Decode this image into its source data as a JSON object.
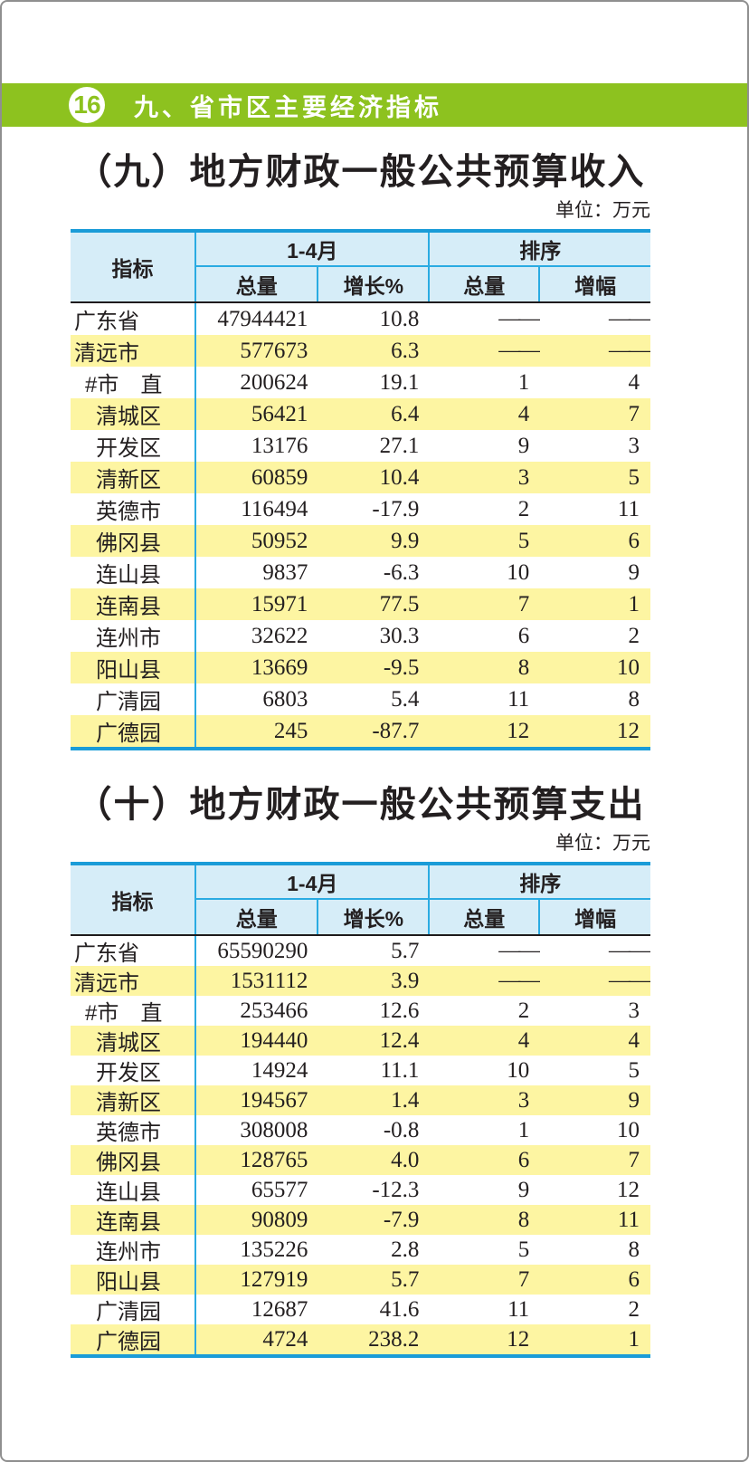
{
  "page_badge": {
    "number": "16",
    "section_title": "九、省市区主要经济指标"
  },
  "tables": [
    {
      "title": "（九）地方财政一般公共预算收入",
      "unit": "单位：万元",
      "header": {
        "indicator": "指标",
        "period_group": "1-4月",
        "rank_group": "排序",
        "sub_total_1": "总量",
        "sub_growth": "增长%",
        "sub_total_2": "总量",
        "sub_increase": "增幅"
      },
      "rows": [
        {
          "label": "广东省",
          "indent": 0,
          "total": "47944421",
          "growth": "10.8",
          "rank_total": "——",
          "rank_growth": "——"
        },
        {
          "label": "清远市",
          "indent": 0,
          "total": "577673",
          "growth": "6.3",
          "rank_total": "——",
          "rank_growth": "——"
        },
        {
          "label": "#市　直",
          "indent": 1,
          "total": "200624",
          "growth": "19.1",
          "rank_total": "1",
          "rank_growth": "4"
        },
        {
          "label": "清城区",
          "indent": 2,
          "total": "56421",
          "growth": "6.4",
          "rank_total": "4",
          "rank_growth": "7"
        },
        {
          "label": "开发区",
          "indent": 2,
          "total": "13176",
          "growth": "27.1",
          "rank_total": "9",
          "rank_growth": "3"
        },
        {
          "label": "清新区",
          "indent": 2,
          "total": "60859",
          "growth": "10.4",
          "rank_total": "3",
          "rank_growth": "5"
        },
        {
          "label": "英德市",
          "indent": 2,
          "total": "116494",
          "growth": "-17.9",
          "rank_total": "2",
          "rank_growth": "11"
        },
        {
          "label": "佛冈县",
          "indent": 2,
          "total": "50952",
          "growth": "9.9",
          "rank_total": "5",
          "rank_growth": "6"
        },
        {
          "label": "连山县",
          "indent": 2,
          "total": "9837",
          "growth": "-6.3",
          "rank_total": "10",
          "rank_growth": "9"
        },
        {
          "label": "连南县",
          "indent": 2,
          "total": "15971",
          "growth": "77.5",
          "rank_total": "7",
          "rank_growth": "1"
        },
        {
          "label": "连州市",
          "indent": 2,
          "total": "32622",
          "growth": "30.3",
          "rank_total": "6",
          "rank_growth": "2"
        },
        {
          "label": "阳山县",
          "indent": 2,
          "total": "13669",
          "growth": "-9.5",
          "rank_total": "8",
          "rank_growth": "10"
        },
        {
          "label": "广清园",
          "indent": 2,
          "total": "6803",
          "growth": "5.4",
          "rank_total": "11",
          "rank_growth": "8"
        },
        {
          "label": "广德园",
          "indent": 2,
          "total": "245",
          "growth": "-87.7",
          "rank_total": "12",
          "rank_growth": "12"
        }
      ]
    },
    {
      "title": "（十）地方财政一般公共预算支出",
      "unit": "单位：万元",
      "header": {
        "indicator": "指标",
        "period_group": "1-4月",
        "rank_group": "排序",
        "sub_total_1": "总量",
        "sub_growth": "增长%",
        "sub_total_2": "总量",
        "sub_increase": "增幅"
      },
      "rows": [
        {
          "label": "广东省",
          "indent": 0,
          "total": "65590290",
          "growth": "5.7",
          "rank_total": "——",
          "rank_growth": "——"
        },
        {
          "label": "清远市",
          "indent": 0,
          "total": "1531112",
          "growth": "3.9",
          "rank_total": "——",
          "rank_growth": "——"
        },
        {
          "label": "#市　直",
          "indent": 1,
          "total": "253466",
          "growth": "12.6",
          "rank_total": "2",
          "rank_growth": "3"
        },
        {
          "label": "清城区",
          "indent": 2,
          "total": "194440",
          "growth": "12.4",
          "rank_total": "4",
          "rank_growth": "4"
        },
        {
          "label": "开发区",
          "indent": 2,
          "total": "14924",
          "growth": "11.1",
          "rank_total": "10",
          "rank_growth": "5"
        },
        {
          "label": "清新区",
          "indent": 2,
          "total": "194567",
          "growth": "1.4",
          "rank_total": "3",
          "rank_growth": "9"
        },
        {
          "label": "英德市",
          "indent": 2,
          "total": "308008",
          "growth": "-0.8",
          "rank_total": "1",
          "rank_growth": "10"
        },
        {
          "label": "佛冈县",
          "indent": 2,
          "total": "128765",
          "growth": "4.0",
          "rank_total": "6",
          "rank_growth": "7"
        },
        {
          "label": "连山县",
          "indent": 2,
          "total": "65577",
          "growth": "-12.3",
          "rank_total": "9",
          "rank_growth": "12"
        },
        {
          "label": "连南县",
          "indent": 2,
          "total": "90809",
          "growth": "-7.9",
          "rank_total": "8",
          "rank_growth": "11"
        },
        {
          "label": "连州市",
          "indent": 2,
          "total": "135226",
          "growth": "2.8",
          "rank_total": "5",
          "rank_growth": "8"
        },
        {
          "label": "阳山县",
          "indent": 2,
          "total": "127919",
          "growth": "5.7",
          "rank_total": "7",
          "rank_growth": "6"
        },
        {
          "label": "广清园",
          "indent": 2,
          "total": "12687",
          "growth": "41.6",
          "rank_total": "11",
          "rank_growth": "2"
        },
        {
          "label": "广德园",
          "indent": 2,
          "total": "4724",
          "growth": "238.2",
          "rank_total": "12",
          "rank_growth": "1"
        }
      ]
    }
  ],
  "colors": {
    "accent_green": "#8dc21f",
    "table_border_blue": "#1a9cd8",
    "table_grid_cyan": "#2aabe2",
    "header_bg": "#d6edf8",
    "stripe_yellow": "#fdf5a2",
    "text": "#231f20",
    "page_border": "#8f8f8f"
  }
}
